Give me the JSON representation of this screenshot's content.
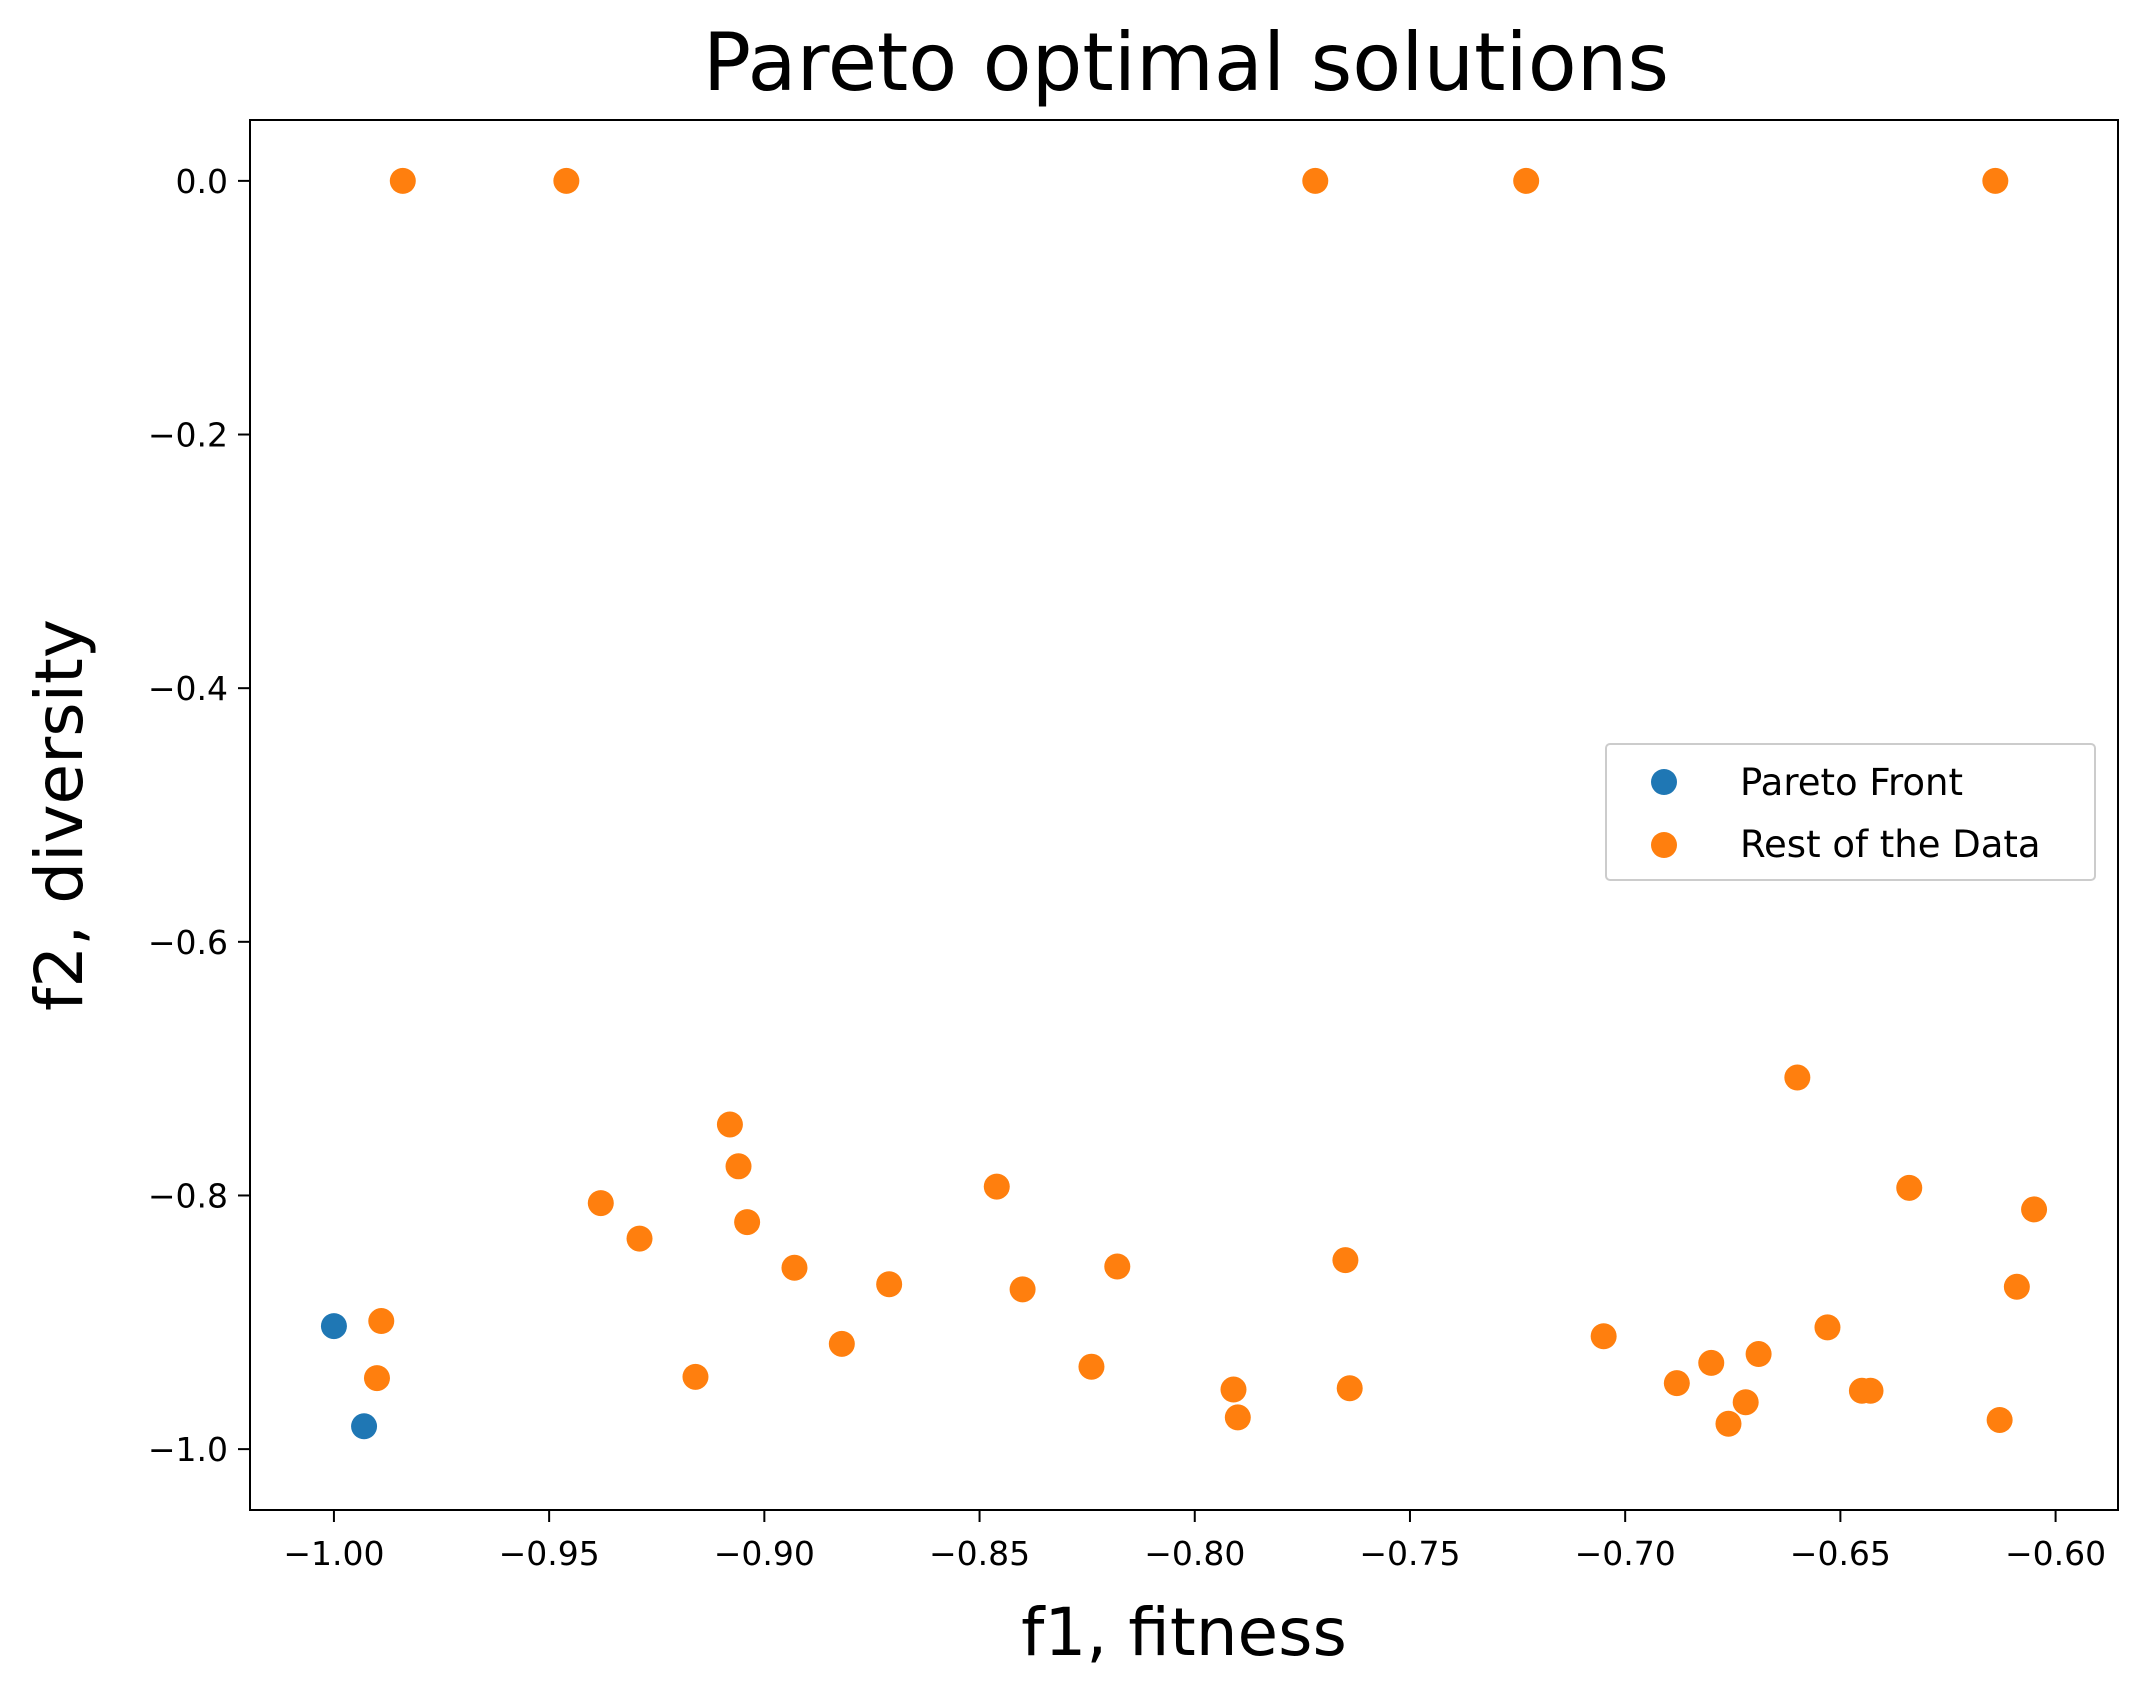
{
  "chart_data": {
    "type": "scatter",
    "title": "Pareto optimal solutions",
    "xlabel": "f1, fitness",
    "ylabel": "f2, diversity",
    "xlim": [
      -1.0195,
      -0.5855
    ],
    "ylim": [
      -1.048,
      0.048
    ],
    "xticks": [
      -1.0,
      -0.95,
      -0.9,
      -0.85,
      -0.8,
      -0.75,
      -0.7,
      -0.65,
      -0.6
    ],
    "yticks": [
      0.0,
      -0.2,
      -0.4,
      -0.6,
      -0.8,
      -1.0
    ],
    "xtick_labels": [
      "−1.00",
      "−0.95",
      "−0.90",
      "−0.85",
      "−0.80",
      "−0.75",
      "−0.70",
      "−0.65",
      "−0.60"
    ],
    "ytick_labels": [
      "0.0",
      "−0.2",
      "−0.4",
      "−0.6",
      "−0.8",
      "−1.0"
    ],
    "legend_position": "center-right",
    "grid": false,
    "series": [
      {
        "name": "Pareto Front",
        "color": "#1f77b4",
        "points": [
          [
            -1.0,
            -0.903
          ],
          [
            -0.993,
            -0.982
          ]
        ]
      },
      {
        "name": "Rest of the Data",
        "color": "#ff7f0e",
        "points": [
          [
            -0.984,
            0.0
          ],
          [
            -0.946,
            0.0
          ],
          [
            -0.772,
            0.0
          ],
          [
            -0.723,
            0.0
          ],
          [
            -0.614,
            0.0
          ],
          [
            -0.989,
            -0.899
          ],
          [
            -0.99,
            -0.944
          ],
          [
            -0.938,
            -0.806
          ],
          [
            -0.929,
            -0.834
          ],
          [
            -0.916,
            -0.943
          ],
          [
            -0.908,
            -0.744
          ],
          [
            -0.906,
            -0.777
          ],
          [
            -0.904,
            -0.821
          ],
          [
            -0.893,
            -0.857
          ],
          [
            -0.882,
            -0.917
          ],
          [
            -0.871,
            -0.87
          ],
          [
            -0.846,
            -0.793
          ],
          [
            -0.84,
            -0.874
          ],
          [
            -0.824,
            -0.935
          ],
          [
            -0.818,
            -0.856
          ],
          [
            -0.791,
            -0.953
          ],
          [
            -0.79,
            -0.975
          ],
          [
            -0.765,
            -0.851
          ],
          [
            -0.764,
            -0.952
          ],
          [
            -0.705,
            -0.911
          ],
          [
            -0.688,
            -0.948
          ],
          [
            -0.68,
            -0.932
          ],
          [
            -0.676,
            -0.98
          ],
          [
            -0.672,
            -0.963
          ],
          [
            -0.669,
            -0.925
          ],
          [
            -0.66,
            -0.707
          ],
          [
            -0.653,
            -0.904
          ],
          [
            -0.645,
            -0.954
          ],
          [
            -0.643,
            -0.954
          ],
          [
            -0.634,
            -0.794
          ],
          [
            -0.613,
            -0.977
          ],
          [
            -0.609,
            -0.872
          ],
          [
            -0.605,
            -0.811
          ]
        ]
      }
    ]
  }
}
